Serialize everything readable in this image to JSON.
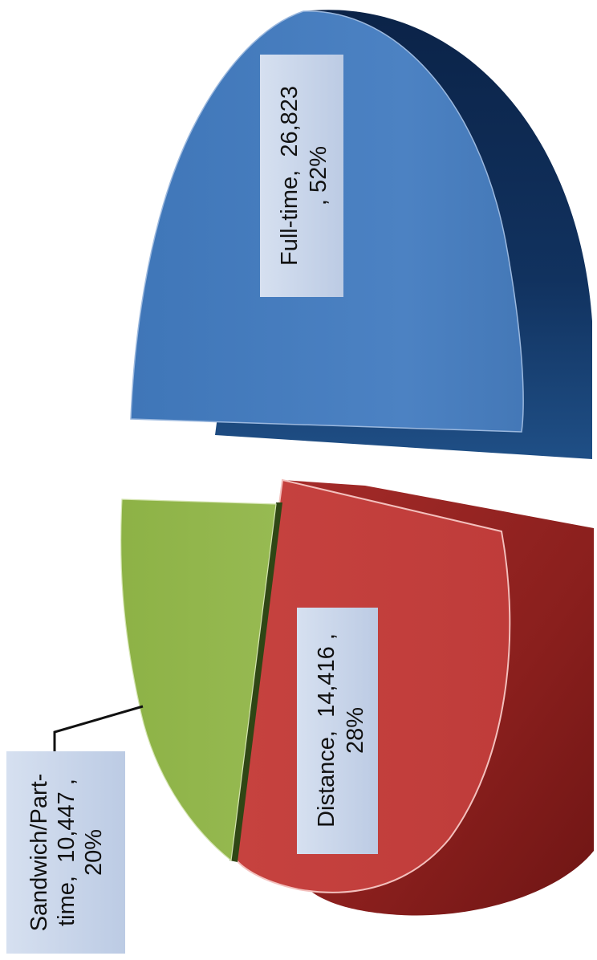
{
  "chart_data": {
    "type": "pie",
    "style": "3d-exploded",
    "orientation": "rotated 90 degrees counter-clockwise",
    "slices": [
      {
        "name": "Full-time",
        "value": 26823,
        "percent": 52,
        "color": "#4a7ebe",
        "dark_color": "#0d2b55"
      },
      {
        "name": "Distance",
        "value": 14416,
        "percent": 28,
        "color": "#c0413f",
        "dark_color": "#7d1d1b"
      },
      {
        "name": "Sandwich/Part-time",
        "value": 10447,
        "percent": 20,
        "color": "#93b64c",
        "dark_color": "#4f6a22"
      }
    ],
    "labels": {
      "full_time": {
        "line1": "Full-time,  26,823",
        "line2": ", 52%"
      },
      "distance": {
        "line1": "Distance,  14,416 ,",
        "line2": "28%"
      },
      "sandwich": {
        "line1": "Sandwich/Part-",
        "line2": "time,  10,447 ,",
        "line3": "20%"
      }
    },
    "label_box_color": "#c9d6eb"
  }
}
